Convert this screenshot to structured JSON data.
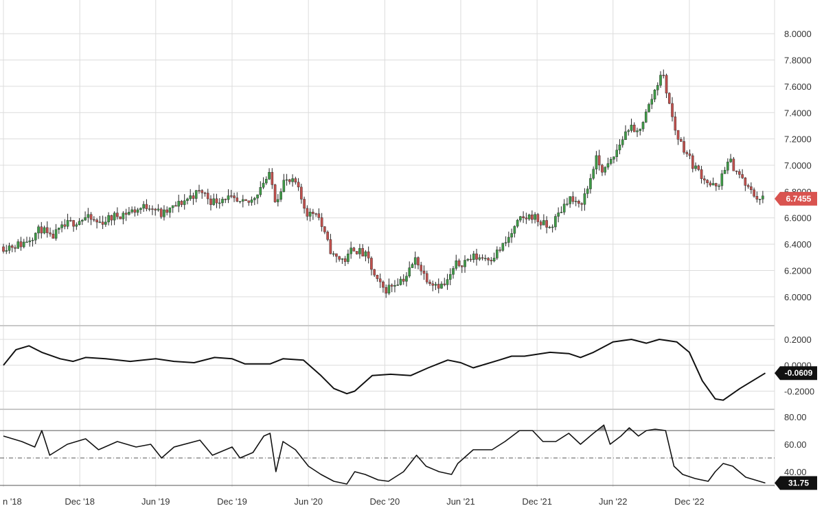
{
  "colors": {
    "up": "#3f9a47",
    "down": "#c0504d",
    "wick": "#222222",
    "line": "#111111",
    "price_tag": "#d9534f",
    "indicator_tag": "#111111",
    "rsi_overbought_fill": "#9a9a9a",
    "grid": "#dcdcdc"
  },
  "chart_data": [
    {
      "type": "candlestick",
      "panel": "price",
      "ylim": [
        5.9,
        8.1
      ],
      "y_ticks": [
        "8.0000",
        "7.8000",
        "7.6000",
        "7.4000",
        "7.2000",
        "7.0000",
        "6.8000",
        "6.6000",
        "6.4000",
        "6.2000",
        "6.0000"
      ],
      "last_value_label": "6.7455",
      "x_range": [
        "2018-06-01",
        "2023-06-10"
      ],
      "x_ticks": [
        "n '18",
        "Dec '18",
        "Jun '19",
        "Dec '19",
        "Jun '20",
        "Dec '20",
        "Jun '21",
        "Dec '21",
        "Jun '22",
        "Dec '22"
      ],
      "x_tick_dates": [
        "2018-06-01",
        "2018-12-01",
        "2019-06-01",
        "2019-12-01",
        "2020-06-01",
        "2020-12-01",
        "2021-06-01",
        "2021-12-01",
        "2022-06-01",
        "2022-12-01"
      ],
      "interval": "weekly",
      "close_anchors": [
        [
          "2018-06-01",
          6.38
        ],
        [
          "2018-07-15",
          6.4
        ],
        [
          "2018-09-01",
          6.52
        ],
        [
          "2018-09-20",
          6.44
        ],
        [
          "2018-11-01",
          6.55
        ],
        [
          "2018-12-15",
          6.6
        ],
        [
          "2019-01-15",
          6.56
        ],
        [
          "2019-03-01",
          6.62
        ],
        [
          "2019-04-15",
          6.66
        ],
        [
          "2019-05-20",
          6.7
        ],
        [
          "2019-06-15",
          6.62
        ],
        [
          "2019-07-15",
          6.68
        ],
        [
          "2019-09-01",
          6.78
        ],
        [
          "2019-09-20",
          6.8
        ],
        [
          "2019-10-15",
          6.72
        ],
        [
          "2019-11-15",
          6.76
        ],
        [
          "2019-12-20",
          6.7
        ],
        [
          "2020-01-15",
          6.72
        ],
        [
          "2020-02-15",
          6.88
        ],
        [
          "2020-03-01",
          6.92
        ],
        [
          "2020-03-15",
          6.72
        ],
        [
          "2020-04-01",
          6.88
        ],
        [
          "2020-05-01",
          6.86
        ],
        [
          "2020-05-20",
          6.7
        ],
        [
          "2020-06-01",
          6.62
        ],
        [
          "2020-06-20",
          6.66
        ],
        [
          "2020-07-15",
          6.42
        ],
        [
          "2020-08-01",
          6.3
        ],
        [
          "2020-09-01",
          6.28
        ],
        [
          "2020-09-15",
          6.38
        ],
        [
          "2020-10-01",
          6.34
        ],
        [
          "2020-10-20",
          6.3
        ],
        [
          "2020-11-10",
          6.12
        ],
        [
          "2020-12-01",
          6.05
        ],
        [
          "2021-01-01",
          6.12
        ],
        [
          "2021-01-20",
          6.15
        ],
        [
          "2021-02-15",
          6.3
        ],
        [
          "2021-03-01",
          6.18
        ],
        [
          "2021-03-20",
          6.12
        ],
        [
          "2021-04-20",
          6.08
        ],
        [
          "2021-05-01",
          6.12
        ],
        [
          "2021-05-20",
          6.24
        ],
        [
          "2021-07-01",
          6.3
        ],
        [
          "2021-08-15",
          6.3
        ],
        [
          "2021-09-15",
          6.4
        ],
        [
          "2021-10-20",
          6.58
        ],
        [
          "2021-11-20",
          6.62
        ],
        [
          "2021-12-10",
          6.56
        ],
        [
          "2021-12-31",
          6.52
        ],
        [
          "2022-01-20",
          6.62
        ],
        [
          "2022-02-15",
          6.76
        ],
        [
          "2022-03-10",
          6.68
        ],
        [
          "2022-04-01",
          6.82
        ],
        [
          "2022-04-20",
          7.05
        ],
        [
          "2022-05-10",
          6.95
        ],
        [
          "2022-06-01",
          7.05
        ],
        [
          "2022-06-20",
          7.18
        ],
        [
          "2022-07-10",
          7.3
        ],
        [
          "2022-07-25",
          7.22
        ],
        [
          "2022-08-20",
          7.4
        ],
        [
          "2022-09-15",
          7.62
        ],
        [
          "2022-09-25",
          7.72
        ],
        [
          "2022-10-05",
          7.6
        ],
        [
          "2022-10-25",
          7.3
        ],
        [
          "2022-11-05",
          7.2
        ],
        [
          "2022-11-20",
          7.12
        ],
        [
          "2022-12-10",
          7.0
        ],
        [
          "2023-01-01",
          6.92
        ],
        [
          "2023-01-20",
          6.85
        ],
        [
          "2023-02-10",
          6.82
        ],
        [
          "2023-02-20",
          6.98
        ],
        [
          "2023-03-10",
          7.02
        ],
        [
          "2023-04-01",
          6.92
        ],
        [
          "2023-04-20",
          6.82
        ],
        [
          "2023-05-15",
          6.75
        ],
        [
          "2023-06-01",
          6.7455
        ]
      ]
    },
    {
      "type": "line",
      "panel": "oscillator",
      "ylim": [
        -0.33,
        0.29
      ],
      "y_ticks": [
        "0.2000",
        "0.0000",
        "-0.2000"
      ],
      "last_value_label": "-0.0609",
      "points": [
        [
          "2018-06-01",
          0.0
        ],
        [
          "2018-07-01",
          0.12
        ],
        [
          "2018-08-01",
          0.15
        ],
        [
          "2018-09-01",
          0.1
        ],
        [
          "2018-10-15",
          0.05
        ],
        [
          "2018-11-15",
          0.03
        ],
        [
          "2018-12-15",
          0.06
        ],
        [
          "2019-02-01",
          0.05
        ],
        [
          "2019-04-01",
          0.03
        ],
        [
          "2019-06-01",
          0.05
        ],
        [
          "2019-07-15",
          0.03
        ],
        [
          "2019-09-01",
          0.02
        ],
        [
          "2019-10-20",
          0.06
        ],
        [
          "2019-12-01",
          0.05
        ],
        [
          "2020-01-01",
          0.01
        ],
        [
          "2020-03-01",
          0.01
        ],
        [
          "2020-04-01",
          0.05
        ],
        [
          "2020-05-20",
          0.04
        ],
        [
          "2020-07-01",
          -0.08
        ],
        [
          "2020-08-01",
          -0.18
        ],
        [
          "2020-09-01",
          -0.22
        ],
        [
          "2020-09-20",
          -0.2
        ],
        [
          "2020-11-01",
          -0.08
        ],
        [
          "2020-12-15",
          -0.07
        ],
        [
          "2021-02-01",
          -0.08
        ],
        [
          "2021-03-15",
          -0.02
        ],
        [
          "2021-05-01",
          0.04
        ],
        [
          "2021-06-01",
          0.02
        ],
        [
          "2021-07-01",
          -0.02
        ],
        [
          "2021-09-01",
          0.04
        ],
        [
          "2021-10-01",
          0.07
        ],
        [
          "2021-11-01",
          0.07
        ],
        [
          "2022-01-01",
          0.1
        ],
        [
          "2022-02-15",
          0.09
        ],
        [
          "2022-03-15",
          0.06
        ],
        [
          "2022-04-15",
          0.1
        ],
        [
          "2022-06-01",
          0.18
        ],
        [
          "2022-07-15",
          0.2
        ],
        [
          "2022-08-20",
          0.17
        ],
        [
          "2022-09-20",
          0.2
        ],
        [
          "2022-11-01",
          0.18
        ],
        [
          "2022-12-01",
          0.1
        ],
        [
          "2023-01-01",
          -0.12
        ],
        [
          "2023-02-01",
          -0.26
        ],
        [
          "2023-02-20",
          -0.27
        ],
        [
          "2023-04-01",
          -0.18
        ],
        [
          "2023-06-01",
          -0.0609
        ]
      ]
    },
    {
      "type": "line",
      "panel": "rsi",
      "ylim": [
        30,
        84
      ],
      "y_ticks": [
        "80.00",
        "60.00",
        "40.00"
      ],
      "last_value_label": "31.75",
      "levels": [
        70,
        50,
        30
      ],
      "points": [
        [
          "2018-06-01",
          66
        ],
        [
          "2018-07-15",
          62
        ],
        [
          "2018-08-15",
          58
        ],
        [
          "2018-09-01",
          70
        ],
        [
          "2018-09-20",
          52
        ],
        [
          "2018-11-01",
          60
        ],
        [
          "2018-12-15",
          64
        ],
        [
          "2019-01-15",
          56
        ],
        [
          "2019-03-01",
          62
        ],
        [
          "2019-04-15",
          58
        ],
        [
          "2019-05-20",
          60
        ],
        [
          "2019-06-15",
          50
        ],
        [
          "2019-07-15",
          58
        ],
        [
          "2019-09-15",
          63
        ],
        [
          "2019-10-15",
          52
        ],
        [
          "2019-12-01",
          58
        ],
        [
          "2019-12-20",
          50
        ],
        [
          "2020-01-20",
          54
        ],
        [
          "2020-02-15",
          66
        ],
        [
          "2020-03-01",
          68
        ],
        [
          "2020-03-15",
          40
        ],
        [
          "2020-04-01",
          62
        ],
        [
          "2020-05-01",
          56
        ],
        [
          "2020-06-01",
          44
        ],
        [
          "2020-07-01",
          38
        ],
        [
          "2020-08-01",
          33
        ],
        [
          "2020-09-01",
          31
        ],
        [
          "2020-09-20",
          40
        ],
        [
          "2020-10-15",
          38
        ],
        [
          "2020-11-15",
          34
        ],
        [
          "2020-12-10",
          33
        ],
        [
          "2021-01-15",
          40
        ],
        [
          "2021-02-15",
          52
        ],
        [
          "2021-03-10",
          44
        ],
        [
          "2021-04-10",
          40
        ],
        [
          "2021-05-10",
          38
        ],
        [
          "2021-05-25",
          46
        ],
        [
          "2021-07-01",
          56
        ],
        [
          "2021-08-15",
          56
        ],
        [
          "2021-09-15",
          62
        ],
        [
          "2021-10-20",
          70
        ],
        [
          "2021-11-20",
          70
        ],
        [
          "2021-12-15",
          62
        ],
        [
          "2022-01-15",
          62
        ],
        [
          "2022-02-15",
          68
        ],
        [
          "2022-03-15",
          60
        ],
        [
          "2022-04-15",
          68
        ],
        [
          "2022-05-10",
          74
        ],
        [
          "2022-05-25",
          60
        ],
        [
          "2022-06-20",
          66
        ],
        [
          "2022-07-10",
          72
        ],
        [
          "2022-08-01",
          66
        ],
        [
          "2022-08-20",
          70
        ],
        [
          "2022-09-10",
          71
        ],
        [
          "2022-10-05",
          70
        ],
        [
          "2022-10-25",
          44
        ],
        [
          "2022-11-15",
          38
        ],
        [
          "2022-12-15",
          35
        ],
        [
          "2023-01-15",
          33
        ],
        [
          "2023-02-01",
          40
        ],
        [
          "2023-02-20",
          46
        ],
        [
          "2023-03-15",
          44
        ],
        [
          "2023-04-15",
          36
        ],
        [
          "2023-06-01",
          31.75
        ]
      ]
    }
  ]
}
